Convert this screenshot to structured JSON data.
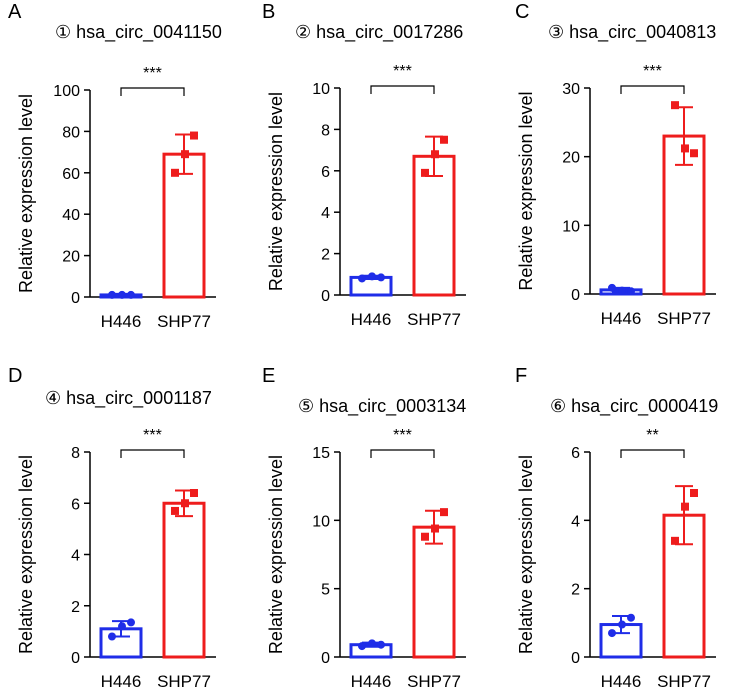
{
  "colors": {
    "H446": "#1f2de8",
    "SHP77": "#ee1c1c",
    "axis": "#000000"
  },
  "chart_data": [
    {
      "panel": "A",
      "type": "bar",
      "title": "① hsa_circ_0041150",
      "ylabel": "Relative expression level",
      "xlabel": "",
      "categories": [
        "H446",
        "SHP77"
      ],
      "ylim": [
        0,
        100
      ],
      "yticks": [
        0,
        20,
        40,
        60,
        80,
        100
      ],
      "values": [
        1,
        69
      ],
      "errors": [
        0.5,
        9.5
      ],
      "points": [
        [
          1,
          1,
          1
        ],
        [
          60,
          69,
          78
        ]
      ],
      "significance": "***"
    },
    {
      "panel": "B",
      "type": "bar",
      "title": "② hsa_circ_0017286",
      "ylabel": "Relative expression level",
      "xlabel": "",
      "categories": [
        "H446",
        "SHP77"
      ],
      "ylim": [
        0,
        10
      ],
      "yticks": [
        0,
        2,
        4,
        6,
        8,
        10
      ],
      "values": [
        0.85,
        6.7
      ],
      "errors": [
        0.08,
        0.95
      ],
      "points": [
        [
          0.8,
          0.9,
          0.85
        ],
        [
          5.9,
          6.8,
          7.5
        ]
      ],
      "significance": "***"
    },
    {
      "panel": "C",
      "type": "bar",
      "title": "③ hsa_circ_0040813",
      "ylabel": "Relative expression level",
      "xlabel": "",
      "categories": [
        "H446",
        "SHP77"
      ],
      "ylim": [
        0,
        30
      ],
      "yticks": [
        0,
        10,
        20,
        30
      ],
      "values": [
        0.6,
        23
      ],
      "errors": [
        0.3,
        4.2
      ],
      "points": [
        [
          0.9,
          0.5,
          0.4
        ],
        [
          27.5,
          21.2,
          20.5
        ]
      ],
      "significance": "***"
    },
    {
      "panel": "D",
      "type": "bar",
      "title": "④ hsa_circ_0001187",
      "ylabel": "Relative expression level",
      "xlabel": "",
      "categories": [
        "H446",
        "SHP77"
      ],
      "ylim": [
        0,
        8
      ],
      "yticks": [
        0,
        2,
        4,
        6,
        8
      ],
      "values": [
        1.1,
        6.0
      ],
      "errors": [
        0.3,
        0.5
      ],
      "points": [
        [
          0.8,
          1.2,
          1.35
        ],
        [
          5.7,
          6.0,
          6.4
        ]
      ],
      "significance": "***"
    },
    {
      "panel": "E",
      "type": "bar",
      "title": "⑤ hsa_circ_0003134",
      "ylabel": "Relative expression level",
      "xlabel": "",
      "categories": [
        "H446",
        "SHP77"
      ],
      "ylim": [
        0,
        15
      ],
      "yticks": [
        0,
        5,
        10,
        15
      ],
      "values": [
        0.9,
        9.5
      ],
      "errors": [
        0.15,
        1.2
      ],
      "points": [
        [
          0.8,
          1.0,
          0.9
        ],
        [
          8.8,
          9.4,
          10.6
        ]
      ],
      "significance": "***"
    },
    {
      "panel": "F",
      "type": "bar",
      "title": "⑥ hsa_circ_0000419",
      "ylabel": "Relative expression level",
      "xlabel": "",
      "categories": [
        "H446",
        "SHP77"
      ],
      "ylim": [
        0,
        6
      ],
      "yticks": [
        0,
        2,
        4,
        6
      ],
      "values": [
        0.95,
        4.15
      ],
      "errors": [
        0.25,
        0.85
      ],
      "points": [
        [
          0.7,
          0.95,
          1.15
        ],
        [
          3.4,
          4.4,
          4.8
        ]
      ],
      "significance": "**"
    }
  ]
}
